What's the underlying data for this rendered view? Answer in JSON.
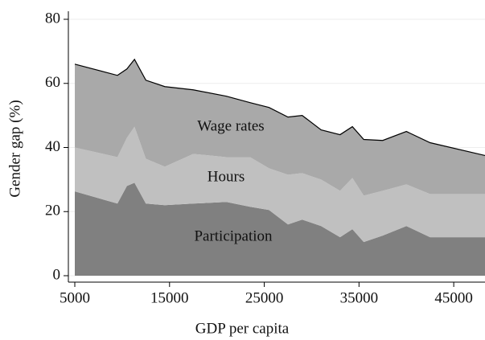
{
  "chart_data": {
    "type": "stacked_area",
    "xlabel": "GDP per capita",
    "ylabel": "Gender gap (%)",
    "x": [
      5000,
      9500,
      10500,
      11300,
      12500,
      14500,
      17500,
      21000,
      23500,
      25500,
      27500,
      29000,
      31000,
      33000,
      34300,
      35500,
      37500,
      40000,
      42500,
      48300
    ],
    "series": [
      {
        "name": "Participation",
        "color": "#808080",
        "values": [
          26.3,
          22.5,
          28,
          29,
          22.5,
          22,
          22.5,
          23,
          21.5,
          20.5,
          16,
          17.5,
          15.5,
          12,
          14.5,
          10.5,
          12.5,
          15.5,
          12,
          12
        ]
      },
      {
        "name": "Hours",
        "color": "#c0c0c0",
        "values": [
          13.7,
          14.5,
          15,
          17.5,
          14,
          12,
          15.5,
          14,
          15.5,
          13,
          15.5,
          14.5,
          14.5,
          14.5,
          16,
          14.5,
          14,
          13,
          13.5,
          13.5
        ]
      },
      {
        "name": "Wage rates",
        "color": "#a9a9a9",
        "values": [
          26,
          25.5,
          21.5,
          21,
          24.5,
          25,
          20,
          19,
          17,
          19,
          18,
          18,
          15.5,
          17.5,
          16,
          17.5,
          15.7,
          16.5,
          16,
          12
        ]
      }
    ],
    "xlim": [
      4320,
      48300
    ],
    "xticks": [
      5000,
      15000,
      25000,
      35000,
      45000
    ],
    "ylim": [
      0,
      80
    ],
    "yticks": [
      0,
      20,
      40,
      60,
      80
    ],
    "grid": true
  }
}
